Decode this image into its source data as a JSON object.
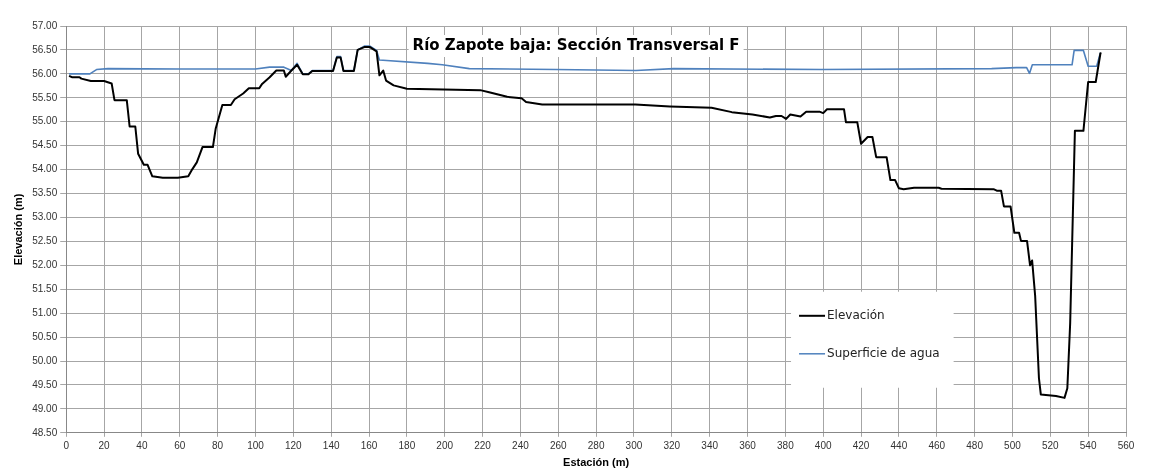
{
  "chart_data": {
    "type": "line",
    "title": "Río Zapote baja: Sección Transversal F",
    "xlabel": "Estación (m)",
    "ylabel": "Elevación (m)",
    "xlim": [
      0,
      560
    ],
    "xticks": [
      0,
      20,
      40,
      60,
      80,
      100,
      120,
      140,
      160,
      180,
      200,
      220,
      240,
      260,
      280,
      300,
      320,
      340,
      360,
      380,
      400,
      420,
      440,
      460,
      480,
      500,
      520,
      540,
      560
    ],
    "ylim": [
      48.5,
      57
    ],
    "yticks": [
      {
        "value": 48.5,
        "label": "48.50"
      },
      {
        "value": 49,
        "label": "49.00"
      },
      {
        "value": 49.5,
        "label": "49.50"
      },
      {
        "value": 50,
        "label": "50.00"
      },
      {
        "value": 50.5,
        "label": "50.50"
      },
      {
        "value": 51,
        "label": "51.00"
      },
      {
        "value": 51.5,
        "label": "51.50"
      },
      {
        "value": 52,
        "label": "52.00"
      },
      {
        "value": 52.5,
        "label": "52.50"
      },
      {
        "value": 53,
        "label": "53.00"
      },
      {
        "value": 53.5,
        "label": "53.50"
      },
      {
        "value": 54,
        "label": "54.00"
      },
      {
        "value": 54.5,
        "label": "54.50"
      },
      {
        "value": 55,
        "label": "55.00"
      },
      {
        "value": 55.5,
        "label": "55.50"
      },
      {
        "value": 56,
        "label": "56.00"
      },
      {
        "value": 56.5,
        "label": "56.50"
      },
      {
        "value": 57,
        "label": "57.00"
      }
    ],
    "grid": true,
    "legend": "bottom right",
    "marker": "none",
    "line_style": "solid",
    "series": [
      {
        "name": "Elevación",
        "color": "#000000",
        "x": [
          1.5,
          3,
          7,
          8,
          13,
          20,
          24,
          25.5,
          32,
          33.5,
          36.5,
          38,
          41,
          43,
          45.5,
          51,
          59,
          64.5,
          66.5,
          69,
          72,
          77.5,
          79,
          82.5,
          87,
          89,
          93.5,
          96.5,
          102,
          103.5,
          107.5,
          111,
          115,
          116,
          119,
          122,
          125,
          128,
          130,
          141,
          143,
          145,
          146.5,
          152,
          154,
          157.5,
          160.5,
          164,
          165.5,
          167.5,
          169,
          173,
          180,
          218.8,
          224,
          233,
          240.6,
          243,
          251.5,
          300.7,
          319,
          341,
          351.7,
          362.6,
          371.8,
          375,
          378,
          380.4,
          382.6,
          388,
          391,
          398,
          400,
          402,
          411,
          412,
          418,
          420,
          423.5,
          426,
          428,
          433.5,
          435.5,
          438,
          440,
          442.5,
          448,
          461,
          462.5,
          490,
          491.7,
          494,
          495.5,
          499,
          501,
          503.5,
          504.5,
          507.7,
          509.3,
          510.4,
          512,
          514,
          515,
          523,
          527.5,
          529,
          530.5,
          533,
          537.5,
          540,
          544,
          546.5,
          547
        ],
        "values": [
          55.96,
          55.93,
          55.93,
          55.9,
          55.85,
          55.85,
          55.8,
          55.45,
          55.45,
          54.9,
          54.9,
          54.33,
          54.1,
          54.1,
          53.86,
          53.83,
          53.83,
          53.86,
          54.0,
          54.15,
          54.47,
          54.47,
          54.86,
          55.35,
          55.35,
          55.47,
          55.59,
          55.7,
          55.7,
          55.79,
          55.93,
          56.07,
          56.07,
          55.94,
          56.07,
          56.19,
          55.99,
          55.99,
          56.06,
          56.06,
          56.34,
          56.34,
          56.06,
          56.06,
          56.5,
          56.56,
          56.56,
          56.47,
          55.97,
          56.07,
          55.86,
          55.76,
          55.69,
          55.66,
          55.61,
          55.52,
          55.49,
          55.41,
          55.36,
          55.36,
          55.32,
          55.29,
          55.2,
          55.15,
          55.09,
          55.12,
          55.12,
          55.06,
          55.15,
          55.11,
          55.21,
          55.21,
          55.18,
          55.26,
          55.26,
          54.99,
          54.99,
          54.54,
          54.68,
          54.68,
          54.26,
          54.26,
          53.78,
          53.78,
          53.61,
          53.59,
          53.62,
          53.62,
          53.6,
          53.59,
          53.56,
          53.56,
          53.23,
          53.23,
          52.68,
          52.68,
          52.51,
          52.51,
          52.0,
          52.1,
          51.36,
          49.64,
          49.3,
          49.27,
          49.23,
          49.43,
          50.79,
          54.81,
          54.81,
          55.83,
          55.83,
          56.43,
          56.42
        ]
      },
      {
        "name": "Superficie de agua",
        "color": "#4f81bd",
        "x": [
          1.5,
          12.5,
          16,
          22,
          60,
          100,
          107.5,
          115,
          119,
          122,
          125,
          128,
          130,
          141,
          143,
          145,
          146.5,
          152,
          154,
          157.5,
          160.5,
          164,
          165.5,
          191,
          198.7,
          213,
          258.7,
          301,
          321,
          399,
          489,
          502,
          507.5,
          509,
          510.5,
          531.5,
          532.6,
          537.5,
          540,
          544.5,
          546.5
        ],
        "values": [
          56.0,
          56.0,
          56.09,
          56.11,
          56.1,
          56.1,
          56.14,
          56.14,
          56.07,
          56.22,
          56.0,
          56.0,
          56.07,
          56.07,
          56.36,
          56.36,
          56.07,
          56.07,
          56.5,
          56.58,
          56.58,
          56.49,
          56.29,
          56.22,
          56.19,
          56.11,
          56.09,
          56.07,
          56.11,
          56.09,
          56.11,
          56.13,
          56.13,
          56.01,
          56.19,
          56.19,
          56.49,
          56.49,
          56.16,
          56.16,
          56.44
        ]
      }
    ]
  }
}
